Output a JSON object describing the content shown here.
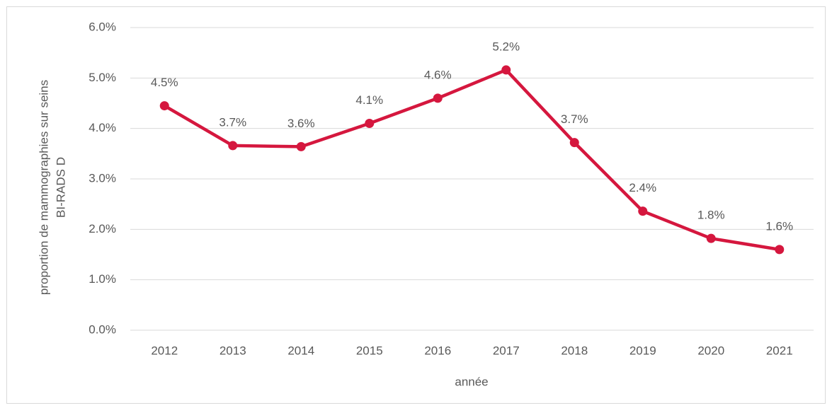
{
  "chart_data": {
    "type": "line",
    "ylabel": [
      "proportion de mammographies sur seins",
      "BI-RADS D"
    ],
    "xlabel": "année",
    "categories": [
      "2012",
      "2013",
      "2014",
      "2015",
      "2016",
      "2017",
      "2018",
      "2019",
      "2020",
      "2021"
    ],
    "series": [
      {
        "color": "#d5173e",
        "values": [
          4.45,
          3.66,
          3.64,
          4.1,
          4.6,
          5.16,
          3.72,
          2.36,
          1.82,
          1.6
        ],
        "value_labels": [
          "4.5%",
          "3.7%",
          "3.6%",
          "4.1%",
          "4.6%",
          "5.2%",
          "3.7%",
          "2.4%",
          "1.8%",
          "1.6%"
        ]
      }
    ],
    "ylim": [
      0,
      6
    ],
    "yticks": [
      {
        "value": 0,
        "label": "0.0%"
      },
      {
        "value": 1,
        "label": "1.0%"
      },
      {
        "value": 2,
        "label": "2.0%"
      },
      {
        "value": 3,
        "label": "3.0%"
      },
      {
        "value": 4,
        "label": "4.0%"
      },
      {
        "value": 5,
        "label": "5.0%"
      },
      {
        "value": 6,
        "label": "6.0%"
      }
    ],
    "grid": true
  }
}
